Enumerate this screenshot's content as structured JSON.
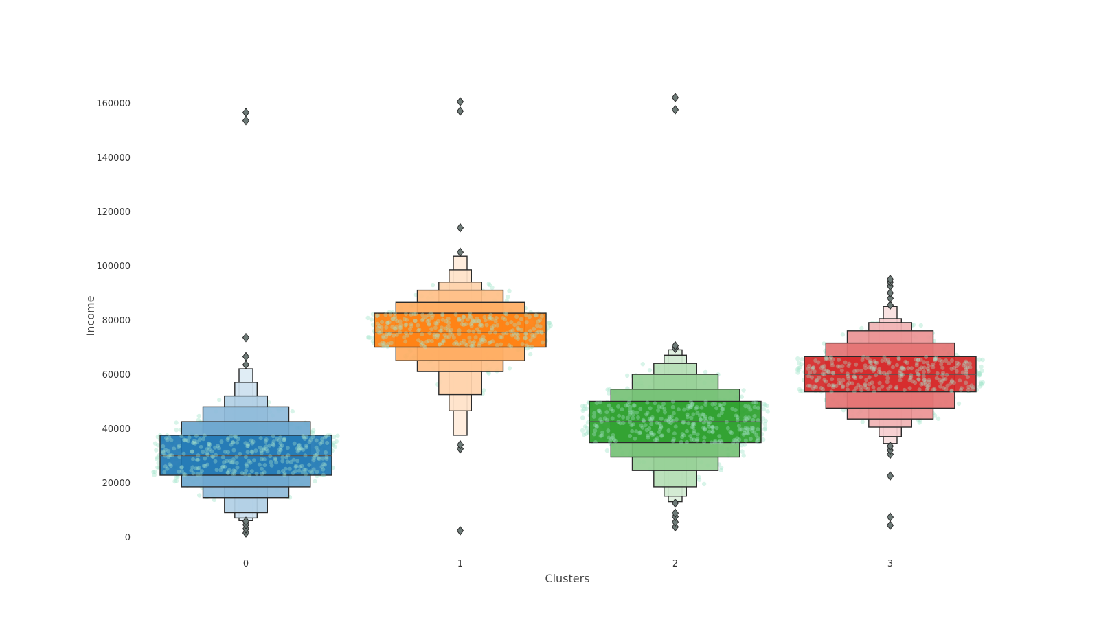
{
  "chart_data": {
    "type": "boxen",
    "xlabel": "Clusters",
    "ylabel": "Income",
    "categories": [
      "0",
      "1",
      "2",
      "3"
    ],
    "ylim": [
      -7000,
      172000
    ],
    "yticks": [
      0,
      20000,
      40000,
      60000,
      80000,
      100000,
      120000,
      140000,
      160000
    ],
    "grid": false,
    "legend": "none",
    "series": [
      {
        "category": "0",
        "color": "#1f77b4",
        "median": 30000,
        "boxes": [
          {
            "lo": 22800,
            "hi": 37500
          },
          {
            "lo": 18500,
            "hi": 42500
          },
          {
            "lo": 14500,
            "hi": 48000
          },
          {
            "lo": 9000,
            "hi": 52000
          },
          {
            "lo": 7000,
            "hi": 57000
          },
          {
            "lo": 6000,
            "hi": 62000
          }
        ],
        "outliers": [
          1500,
          3000,
          4500,
          5800,
          63500,
          66500,
          73500,
          153500,
          156500
        ]
      },
      {
        "category": "1",
        "color": "#ff7f0e",
        "median": 75500,
        "boxes": [
          {
            "lo": 70000,
            "hi": 82500
          },
          {
            "lo": 65000,
            "hi": 86500
          },
          {
            "lo": 61000,
            "hi": 91000
          },
          {
            "lo": 52500,
            "hi": 94000
          },
          {
            "lo": 46500,
            "hi": 98500
          },
          {
            "lo": 37500,
            "hi": 103500
          }
        ],
        "outliers": [
          2300,
          32500,
          34000,
          105000,
          114000,
          157000,
          160500
        ]
      },
      {
        "category": "2",
        "color": "#2ca02c",
        "median": 42500,
        "boxes": [
          {
            "lo": 34800,
            "hi": 50000
          },
          {
            "lo": 29500,
            "hi": 54500
          },
          {
            "lo": 24500,
            "hi": 60000
          },
          {
            "lo": 18500,
            "hi": 64000
          },
          {
            "lo": 15000,
            "hi": 67000
          },
          {
            "lo": 13000,
            "hi": 69000
          }
        ],
        "outliers": [
          3700,
          5500,
          7500,
          8800,
          12500,
          69500,
          70500,
          157500,
          162000
        ]
      },
      {
        "category": "3",
        "color": "#d62728",
        "median": 60000,
        "boxes": [
          {
            "lo": 53500,
            "hi": 66500
          },
          {
            "lo": 47500,
            "hi": 71500
          },
          {
            "lo": 43500,
            "hi": 76000
          },
          {
            "lo": 40500,
            "hi": 79000
          },
          {
            "lo": 37000,
            "hi": 80500
          },
          {
            "lo": 34500,
            "hi": 85000
          }
        ],
        "outliers": [
          4300,
          7300,
          22500,
          30500,
          32000,
          33500,
          85500,
          88000,
          90000,
          92500,
          94000,
          95000
        ]
      }
    ],
    "swarm_color": "#a8e6cf"
  }
}
